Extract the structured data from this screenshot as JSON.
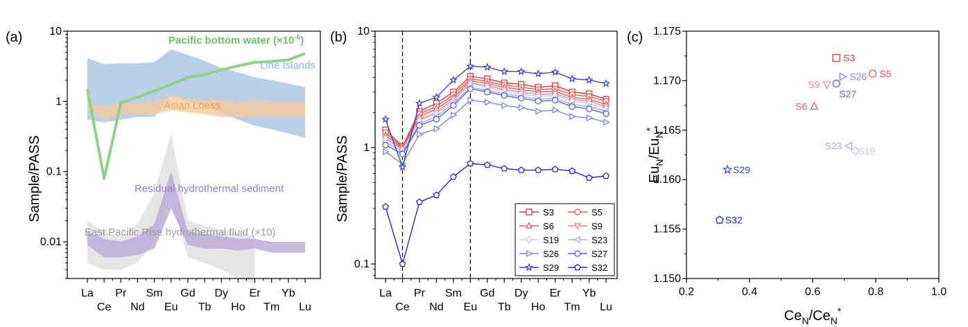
{
  "chart_data": [
    {
      "panel": "(a)",
      "type": "line",
      "yscale": "log",
      "ylabel": "Sample/PASS",
      "ylim": [
        0.003,
        10
      ],
      "yticks": [
        "10",
        "1",
        "0.1",
        "0.01"
      ],
      "categories_upper": [
        "La",
        "Pr",
        "Sm",
        "Gd",
        "Dy",
        "Er",
        "Yb"
      ],
      "categories_lower": [
        "Ce",
        "Nd",
        "Eu",
        "Tb",
        "Ho",
        "Tm",
        "Lu"
      ],
      "categories": [
        "La",
        "Ce",
        "Pr",
        "Nd",
        "Sm",
        "Eu",
        "Gd",
        "Tb",
        "Dy",
        "Ho",
        "Er",
        "Tm",
        "Yb",
        "Lu"
      ],
      "series": [
        {
          "name": "Pacific bottom water (×10",
          "name_sup": "-6",
          "name_end": ")",
          "kind": "line",
          "color": "#90d18a",
          "values": [
            1.5,
            0.08,
            0.95,
            1.15,
            1.4,
            1.75,
            2.2,
            2.4,
            2.8,
            3.2,
            3.6,
            3.7,
            3.9,
            4.8
          ]
        },
        {
          "name": "Line Islands",
          "kind": "band",
          "color": "#a9c4e4",
          "upper": [
            4.1,
            3.4,
            3.5,
            3.5,
            3.6,
            5.5,
            4.6,
            3.8,
            3.0,
            2.6,
            2.2,
            2.0,
            1.8,
            1.6
          ],
          "lower": [
            0.55,
            0.5,
            0.55,
            0.6,
            0.6,
            1.2,
            1.0,
            0.85,
            0.7,
            0.55,
            0.45,
            0.4,
            0.35,
            0.3
          ]
        },
        {
          "name": "Asian Loess",
          "kind": "band",
          "color": "#f6c99c",
          "upper": [
            0.95,
            0.85,
            0.95,
            0.95,
            1.0,
            1.2,
            1.1,
            1.05,
            1.05,
            1.0,
            1.05,
            1.0,
            1.0,
            1.0
          ],
          "lower": [
            0.75,
            0.55,
            0.65,
            0.65,
            0.65,
            0.75,
            0.7,
            0.65,
            0.6,
            0.6,
            0.6,
            0.6,
            0.6,
            0.6
          ]
        },
        {
          "name": "Residual hydrothermal sediment",
          "kind": "band",
          "color": "#b9a8d7",
          "upper": [
            0.014,
            0.011,
            0.01,
            0.012,
            0.018,
            0.1,
            0.014,
            0.013,
            0.012,
            0.011,
            0.011,
            0.01,
            0.01,
            0.01
          ],
          "lower": [
            0.009,
            0.006,
            0.006,
            0.0065,
            0.008,
            0.03,
            0.009,
            0.008,
            0.008,
            0.0075,
            0.008,
            0.007,
            0.007,
            0.007
          ]
        },
        {
          "name": "East Pacific Rise hydrothermal fluid (×10)",
          "kind": "band",
          "color": "#dcdcdc",
          "upper": [
            0.02,
            0.014,
            0.012,
            0.018,
            0.05,
            0.35,
            0.02,
            0.017,
            0.015,
            0.013,
            0.012
          ],
          "lower": [
            0.005,
            0.004,
            0.004,
            0.005,
            0.01,
            0.04,
            0.006,
            0.005,
            0.004,
            0.003,
            0.0025
          ]
        }
      ]
    },
    {
      "panel": "(b)",
      "type": "line",
      "yscale": "log",
      "ylabel": "Sample/PASS",
      "ylim": [
        0.075,
        10
      ],
      "yticks": [
        "10",
        "1",
        "0.1"
      ],
      "categories_upper": [
        "La",
        "Pr",
        "Sm",
        "Gd",
        "Dy",
        "Er",
        "Yb"
      ],
      "categories_lower": [
        "Ce",
        "Nd",
        "Eu",
        "Tb",
        "Ho",
        "Tm",
        "Lu"
      ],
      "categories": [
        "La",
        "Ce",
        "Pr",
        "Nd",
        "Sm",
        "Eu",
        "Gd",
        "Tb",
        "Dy",
        "Ho",
        "Er",
        "Tm",
        "Yb",
        "Lu"
      ],
      "dashed_at": [
        "Ce",
        "Eu"
      ],
      "series": [
        {
          "name": "S3",
          "marker": "square",
          "color": "#d9363e",
          "values": [
            1.42,
            1.02,
            2.05,
            2.4,
            3.0,
            4.1,
            3.9,
            3.6,
            3.5,
            3.3,
            3.4,
            3.0,
            2.9,
            2.6
          ]
        },
        {
          "name": "S5",
          "marker": "circle",
          "color": "#e0595a",
          "values": [
            1.35,
            1.0,
            1.95,
            2.25,
            2.85,
            3.9,
            3.7,
            3.45,
            3.3,
            3.15,
            3.2,
            2.85,
            2.75,
            2.5
          ]
        },
        {
          "name": "S6",
          "marker": "triangle",
          "color": "#e45c5c",
          "values": [
            1.28,
            0.98,
            1.85,
            2.15,
            2.7,
            3.75,
            3.55,
            3.3,
            3.15,
            3.0,
            3.05,
            2.7,
            2.6,
            2.35
          ]
        },
        {
          "name": "S9",
          "marker": "tri-down",
          "color": "#ec8a8a",
          "values": [
            1.22,
            0.96,
            1.75,
            2.0,
            2.6,
            3.6,
            3.4,
            3.15,
            3.0,
            2.85,
            2.9,
            2.6,
            2.5,
            2.25
          ]
        },
        {
          "name": "S19",
          "marker": "diamond",
          "color": "#c8cbee",
          "values": [
            1.18,
            0.95,
            1.7,
            1.95,
            2.5,
            3.5,
            3.3,
            3.05,
            2.9,
            2.75,
            2.8,
            2.5,
            2.4,
            2.15
          ]
        },
        {
          "name": "S23",
          "marker": "tri-left",
          "color": "#a6aae4",
          "values": [
            1.12,
            0.92,
            1.6,
            1.85,
            2.4,
            3.3,
            3.1,
            2.9,
            2.75,
            2.6,
            2.65,
            2.35,
            2.25,
            2.05
          ]
        },
        {
          "name": "S26",
          "marker": "tri-right",
          "color": "#7d85dc",
          "values": [
            0.92,
            0.72,
            1.3,
            1.45,
            1.9,
            2.55,
            2.45,
            2.3,
            2.2,
            2.05,
            2.1,
            1.85,
            1.8,
            1.65
          ]
        },
        {
          "name": "S27",
          "marker": "circle",
          "color": "#5a63cc",
          "values": [
            1.05,
            0.88,
            1.55,
            1.75,
            2.3,
            3.2,
            3.0,
            2.8,
            2.65,
            2.5,
            2.55,
            2.25,
            2.15,
            1.95
          ]
        },
        {
          "name": "S29",
          "marker": "star",
          "color": "#3c45c8",
          "values": [
            1.75,
            0.68,
            2.4,
            2.7,
            3.8,
            5.0,
            4.9,
            4.5,
            4.5,
            4.3,
            4.45,
            3.9,
            3.8,
            3.55
          ]
        },
        {
          "name": "S32",
          "marker": "pentagon",
          "color": "#1f2ab8",
          "values": [
            0.31,
            0.1,
            0.34,
            0.39,
            0.56,
            0.73,
            0.71,
            0.66,
            0.64,
            0.64,
            0.65,
            0.63,
            0.55,
            0.57
          ]
        }
      ]
    },
    {
      "panel": "(c)",
      "type": "scatter",
      "xlabel": "Ce",
      "xlabel_sub": "N",
      "xlabel_mid": "/Ce",
      "xlabel_sub2": "N",
      "xlabel_sup": "*",
      "ylabel": "Eu",
      "ylabel_sub": "N",
      "ylabel_mid": "/Eu",
      "ylabel_sub2": "N",
      "ylabel_sup": "*",
      "xlim": [
        0.2,
        1.0
      ],
      "ylim": [
        1.15,
        1.175
      ],
      "xticks": [
        "0.2",
        "0.4",
        "0.6",
        "0.8",
        "1.0"
      ],
      "yticks": [
        "1.150",
        "1.155",
        "1.160",
        "1.165",
        "1.170",
        "1.175"
      ],
      "points": [
        {
          "label": "S3",
          "x": 0.675,
          "y": 1.1723,
          "marker": "square",
          "color": "#d9363e"
        },
        {
          "label": "S5",
          "x": 0.79,
          "y": 1.1707,
          "marker": "circle",
          "color": "#e0595a"
        },
        {
          "label": "S26",
          "x": 0.695,
          "y": 1.1704,
          "marker": "tri-right",
          "color": "#7d85dc"
        },
        {
          "label": "S9",
          "x": 0.645,
          "y": 1.1696,
          "marker": "tri-down",
          "color": "#ec8a8a"
        },
        {
          "label": "S27",
          "x": 0.675,
          "y": 1.1697,
          "marker": "circle",
          "color": "#5a63cc"
        },
        {
          "label": "S6",
          "x": 0.605,
          "y": 1.1674,
          "marker": "triangle",
          "color": "#e45c5c"
        },
        {
          "label": "S23",
          "x": 0.715,
          "y": 1.1634,
          "marker": "tri-left",
          "color": "#a6aae4"
        },
        {
          "label": "S19",
          "x": 0.735,
          "y": 1.1629,
          "marker": "diamond",
          "color": "#c8cbee"
        },
        {
          "label": "S29",
          "x": 0.33,
          "y": 1.161,
          "marker": "star",
          "color": "#3c45c8"
        },
        {
          "label": "S32",
          "x": 0.305,
          "y": 1.1559,
          "marker": "pentagon",
          "color": "#1f2ab8"
        }
      ]
    }
  ]
}
